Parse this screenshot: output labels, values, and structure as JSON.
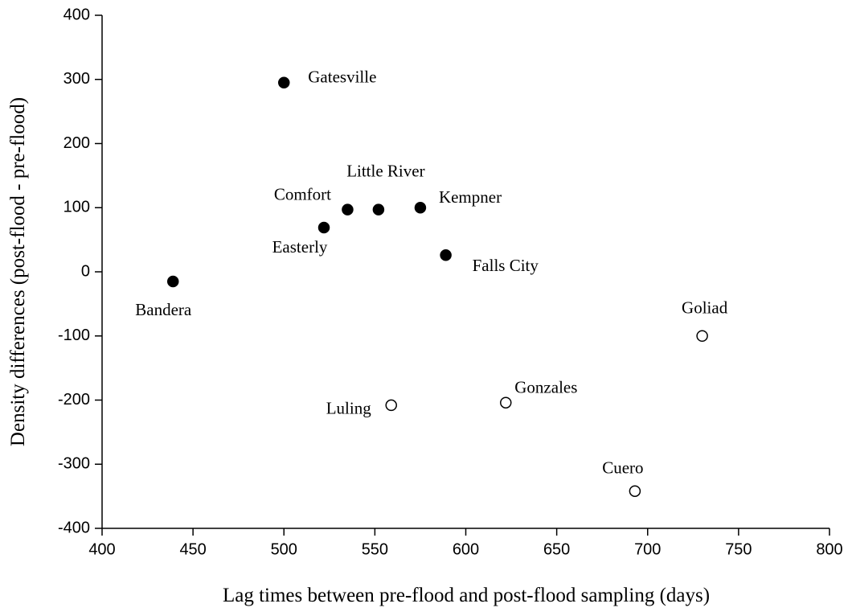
{
  "chart_data": {
    "type": "scatter",
    "xlabel": "Lag times between pre-flood and post-flood sampling (days)",
    "ylabel": "Density differences (post-flood - pre-flood)",
    "xlim": [
      400,
      800
    ],
    "xticks": [
      400,
      450,
      500,
      550,
      600,
      650,
      700,
      750,
      800
    ],
    "ylim": [
      -400,
      400
    ],
    "yticks": [
      -400,
      -300,
      -200,
      -100,
      0,
      100,
      200,
      300,
      400
    ],
    "series": [
      {
        "marker": "filled",
        "color": "#000000",
        "x": [
          500,
          522,
          535,
          552,
          575,
          589,
          439
        ],
        "values": [
          295,
          69,
          97,
          97,
          100,
          26,
          -15
        ],
        "labels": [
          "Gatesville",
          "Easterly",
          "Comfort",
          "Little River",
          "Kempner",
          "Falls City",
          "Bandera"
        ]
      },
      {
        "marker": "open",
        "color": "#000000",
        "x": [
          559,
          622,
          730,
          693
        ],
        "values": [
          -208,
          -204,
          -100,
          -342
        ],
        "labels": [
          "Luling",
          "Gonzales",
          "Goliad",
          "Cuero"
        ]
      }
    ]
  }
}
